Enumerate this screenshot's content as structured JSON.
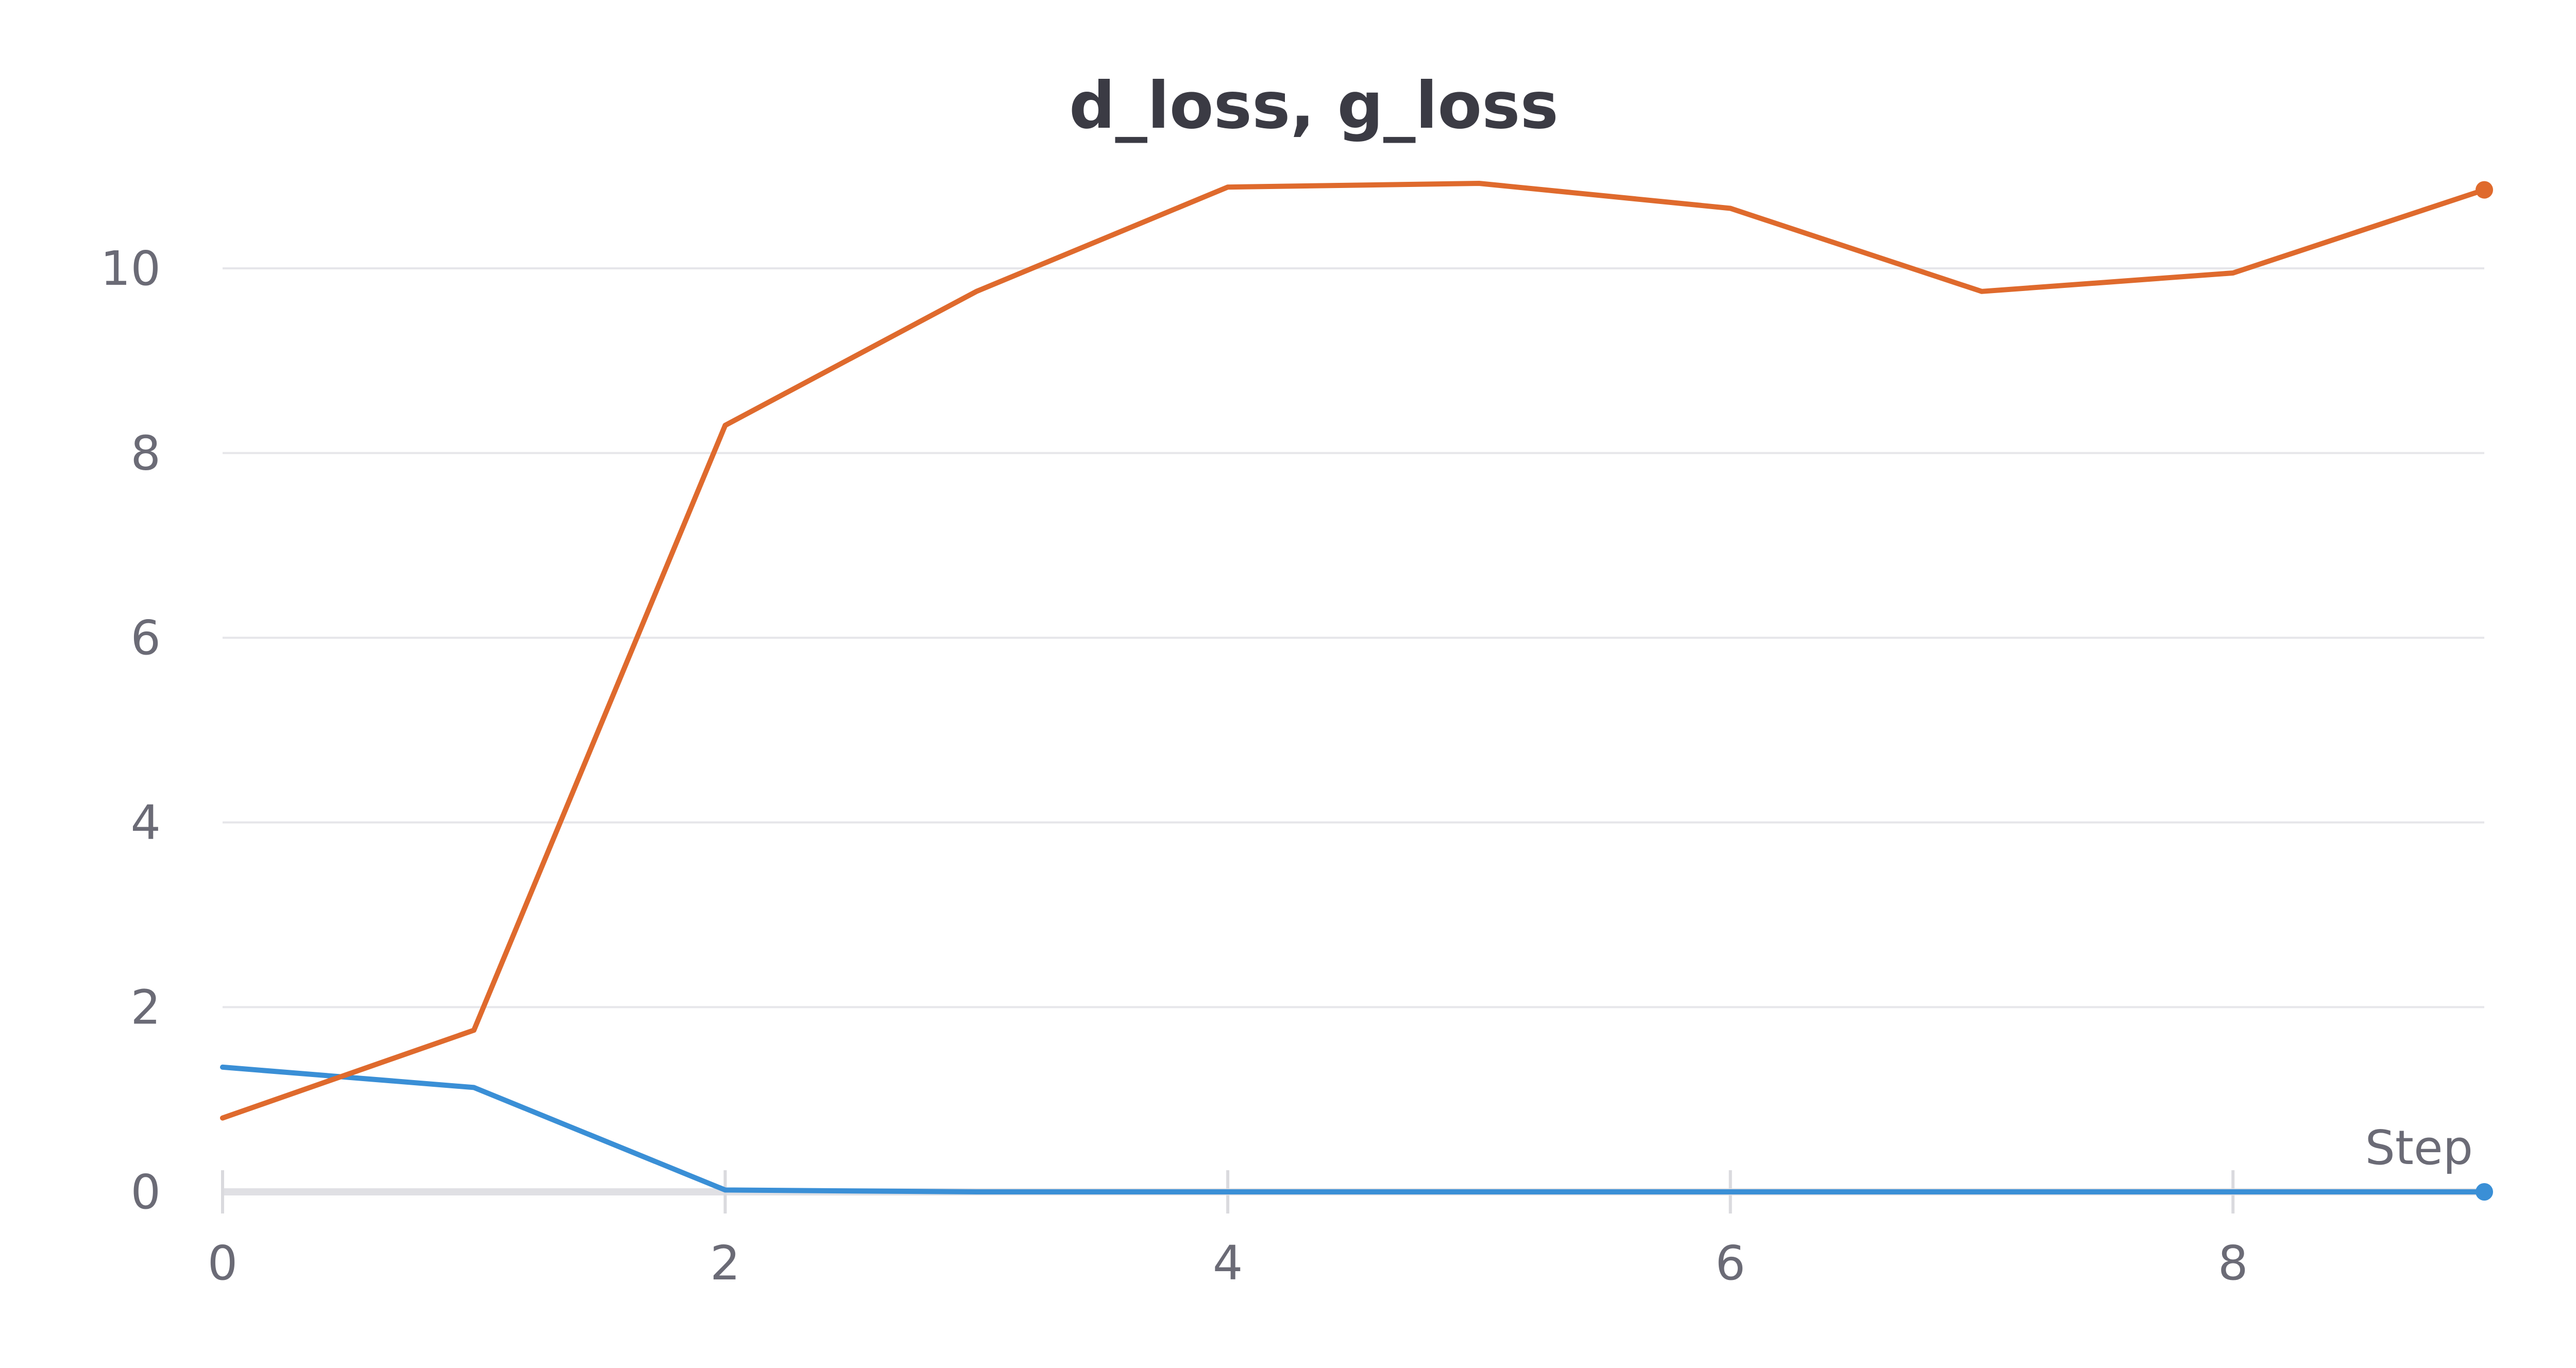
{
  "chart_data": {
    "type": "line",
    "title": "d_loss, g_loss",
    "xlabel": "Step",
    "ylabel": "",
    "xlim": [
      0,
      9
    ],
    "ylim": [
      0,
      11
    ],
    "x_ticks": [
      "0",
      "2",
      "4",
      "6",
      "8"
    ],
    "y_ticks": [
      "0",
      "2",
      "4",
      "6",
      "8",
      "10"
    ],
    "grid": true,
    "series": [
      {
        "key": "d_loss",
        "color": "#3a8fd6",
        "x": [
          0,
          1,
          2,
          3,
          4,
          5,
          6,
          7,
          8,
          9
        ],
        "values": [
          1.35,
          1.13,
          0.02,
          0.0,
          0.0,
          0.0,
          0.0,
          0.0,
          0.0,
          0.0
        ]
      },
      {
        "key": "g_loss",
        "color": "#df6a2d",
        "x": [
          0,
          1,
          2,
          3,
          4,
          5,
          6,
          7,
          8,
          9
        ],
        "values": [
          0.8,
          1.75,
          8.3,
          9.75,
          10.88,
          10.92,
          10.65,
          9.75,
          9.95,
          10.85
        ]
      }
    ]
  }
}
